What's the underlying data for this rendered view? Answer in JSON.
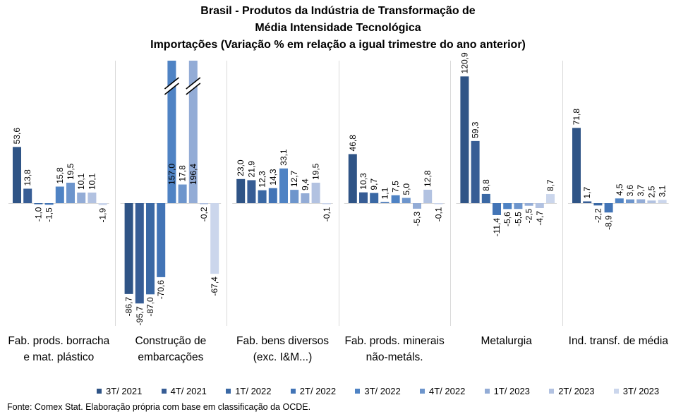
{
  "title_lines": [
    "Brasil - Produtos da Indústria de Transformação de",
    "Média Intensidade Tecnológica",
    "Importações (Variação % em relação a igual trimestre do ano anterior)"
  ],
  "footnote": "Fonte: Comex Stat. Elaboração própria com base em classificação da OCDE.",
  "colors": [
    "#2f5486",
    "#375d95",
    "#3a68a4",
    "#4274b6",
    "#4f83c4",
    "#6d95cc",
    "#93acd6",
    "#b2c2e1",
    "#cbd6ec"
  ],
  "chart_data": {
    "type": "bar",
    "title": "Brasil - Produtos da Indústria de Transformação de Média Intensidade Tecnológica — Importações (Variação % em relação a igual trimestre do ano anterior)",
    "categories": [
      "Fab. prods. borracha e mat. plástico",
      "Construção de embarcações",
      "Fab. bens diversos (exc. I&M...)",
      "Fab. prods. minerais não-metáls.",
      "Metalurgia",
      "Ind. transf. de média"
    ],
    "category_label_lines": [
      [
        "Fab. prods. borracha",
        "e mat. plástico"
      ],
      [
        "Construção de",
        "embarcações"
      ],
      [
        "Fab. bens diversos",
        "(exc. I&M...)"
      ],
      [
        "Fab. prods. minerais",
        "não-metáls."
      ],
      [
        "Metalurgia"
      ],
      [
        "Ind. transf. de média"
      ]
    ],
    "series": [
      {
        "name": "3T/ 2021",
        "values": [
          53.6,
          -86.7,
          23.0,
          46.8,
          120.9,
          71.8
        ],
        "labels": [
          "53,6",
          "-86,7",
          "23,0",
          "46,8",
          "120,9",
          "71,8"
        ]
      },
      {
        "name": "4T/ 2021",
        "values": [
          13.8,
          -95.7,
          21.9,
          10.3,
          59.3,
          1.7
        ],
        "labels": [
          "13,8",
          "-95,7",
          "21,9",
          "10,3",
          "59,3",
          "1,7"
        ]
      },
      {
        "name": "1T/ 2022",
        "values": [
          -1.0,
          -87.0,
          12.3,
          9.7,
          8.8,
          -2.2
        ],
        "labels": [
          "-1,0",
          "-87,0",
          "12,3",
          "9,7",
          "8,8",
          "-2,2"
        ]
      },
      {
        "name": "2T/ 2022",
        "values": [
          -1.5,
          -70.6,
          14.3,
          1.1,
          -11.4,
          -8.9
        ],
        "labels": [
          "-1,5",
          "-70,6",
          "14,3",
          "1,1",
          "-11,4",
          "-8,9"
        ]
      },
      {
        "name": "3T/ 2022",
        "values": [
          15.8,
          157.0,
          33.1,
          7.5,
          -5.6,
          4.5
        ],
        "labels": [
          "15,8",
          "157,0",
          "33,1",
          "7,5",
          "-5,6",
          "4,5"
        ]
      },
      {
        "name": "4T/ 2022",
        "values": [
          19.5,
          17.8,
          12.7,
          5.0,
          -5.5,
          3.6
        ],
        "labels": [
          "19,5",
          "17,8",
          "12,7",
          "5,0",
          "-5,5",
          "3,6"
        ]
      },
      {
        "name": "1T/ 2023",
        "values": [
          10.1,
          196.4,
          9.4,
          -5.3,
          -2.5,
          3.7
        ],
        "labels": [
          "10,1",
          "196,4",
          "9,4",
          "-5,3",
          "-2,5",
          "3,7"
        ]
      },
      {
        "name": "2T/ 2023",
        "values": [
          10.1,
          -0.2,
          19.5,
          12.8,
          -4.7,
          2.5
        ],
        "labels": [
          "10,1",
          "-0,2",
          "19,5",
          "12,8",
          "-4,7",
          "2,5"
        ]
      },
      {
        "name": "3T/ 2023",
        "values": [
          -1.9,
          -67.4,
          -0.1,
          -0.1,
          8.7,
          3.1
        ],
        "labels": [
          "-1,9",
          "-67,4",
          "-0,1",
          "-0,1",
          "8,7",
          "3,1"
        ]
      }
    ],
    "ylim": [
      -100,
      135
    ],
    "axis_break": true,
    "grid": false,
    "legend_position": "bottom"
  }
}
